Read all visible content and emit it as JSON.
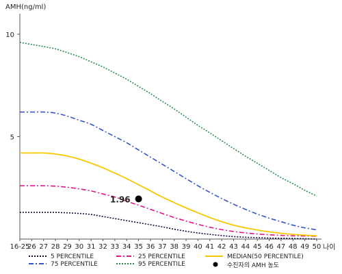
{
  "chart_data": {
    "type": "line",
    "title": "",
    "ylabel": "AMH(ng/ml)",
    "xlabel": "나이",
    "ylim": [
      0,
      11
    ],
    "yticks": [
      5,
      10
    ],
    "categories": [
      "16-25",
      "26",
      "27",
      "28",
      "29",
      "30",
      "31",
      "32",
      "33",
      "34",
      "35",
      "36",
      "37",
      "38",
      "39",
      "40",
      "41",
      "42",
      "43",
      "44",
      "45",
      "46",
      "47",
      "48",
      "49",
      "50"
    ],
    "series": [
      {
        "name": "5 PERCENTILE",
        "color": "#0a0a3a",
        "dash": "2,2",
        "values": [
          1.3,
          1.3,
          1.3,
          1.3,
          1.28,
          1.25,
          1.2,
          1.1,
          1.0,
          0.9,
          0.8,
          0.7,
          0.6,
          0.48,
          0.38,
          0.3,
          0.23,
          0.17,
          0.12,
          0.09,
          0.07,
          0.05,
          0.04,
          0.03,
          0.02,
          0.0
        ]
      },
      {
        "name": "25 PERCENTILE",
        "color": "#e0158a",
        "dash": "7,3,2,3",
        "values": [
          2.6,
          2.6,
          2.6,
          2.58,
          2.53,
          2.45,
          2.35,
          2.2,
          2.05,
          1.85,
          1.65,
          1.45,
          1.25,
          1.05,
          0.88,
          0.72,
          0.58,
          0.46,
          0.37,
          0.3,
          0.25,
          0.21,
          0.18,
          0.16,
          0.15,
          0.14
        ]
      },
      {
        "name": "MEDIAN(50 PERCENTILE)",
        "color": "#f5c800",
        "dash": "",
        "values": [
          4.2,
          4.2,
          4.2,
          4.15,
          4.05,
          3.9,
          3.7,
          3.48,
          3.22,
          2.95,
          2.65,
          2.35,
          2.05,
          1.78,
          1.52,
          1.28,
          1.05,
          0.85,
          0.68,
          0.55,
          0.44,
          0.35,
          0.28,
          0.23,
          0.19,
          0.16
        ]
      },
      {
        "name": "75 PERCENTILE",
        "color": "#3355cc",
        "dash": "7,3,2,3",
        "values": [
          6.2,
          6.2,
          6.2,
          6.15,
          6.0,
          5.8,
          5.6,
          5.3,
          5.0,
          4.7,
          4.35,
          4.0,
          3.65,
          3.3,
          2.95,
          2.6,
          2.28,
          1.98,
          1.7,
          1.45,
          1.22,
          1.02,
          0.85,
          0.68,
          0.55,
          0.45
        ]
      },
      {
        "name": "95 PERCENTILE",
        "color": "#2a8a4a",
        "dash": "2,2",
        "values": [
          9.6,
          9.5,
          9.4,
          9.28,
          9.1,
          8.9,
          8.65,
          8.4,
          8.1,
          7.8,
          7.45,
          7.1,
          6.72,
          6.35,
          5.95,
          5.55,
          5.18,
          4.8,
          4.42,
          4.05,
          3.7,
          3.35,
          3.0,
          2.7,
          2.38,
          2.1
        ]
      }
    ],
    "patient_point": {
      "name": "수진자의 AMH 농도",
      "category": "35",
      "value": 1.96,
      "label": "1.96"
    },
    "legend_position": "bottom"
  }
}
